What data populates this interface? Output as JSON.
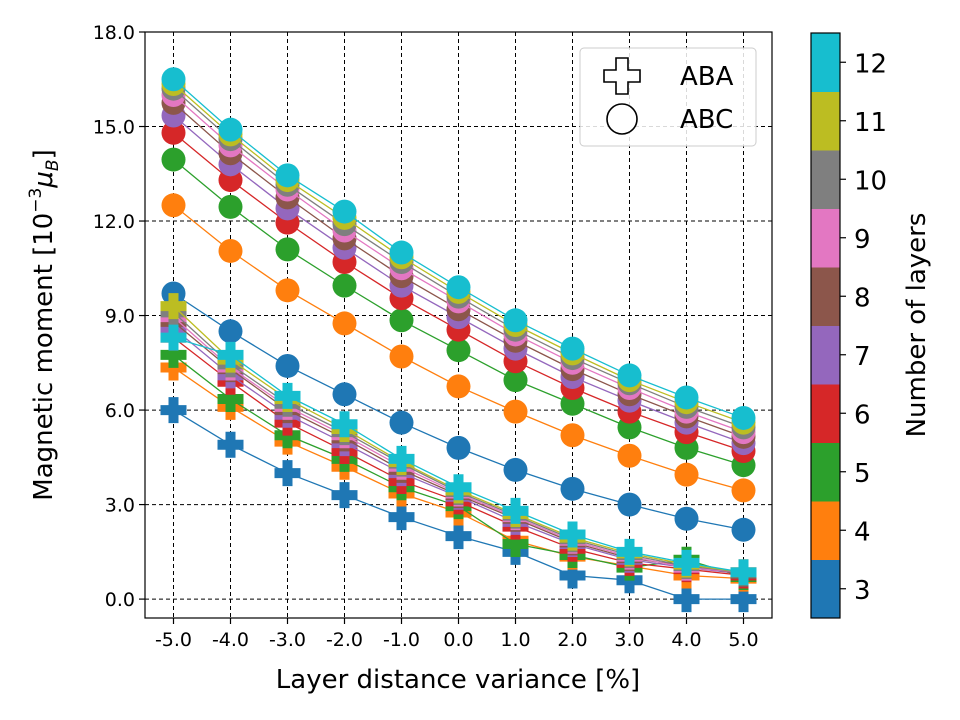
{
  "chart_data": {
    "type": "line",
    "xlabel": "Layer distance variance [%]",
    "ylabel_main": "Magnetic moment [10",
    "ylabel_exp": "−3",
    "ylabel_mu": "μ",
    "ylabel_sub": "B",
    "ylabel_close": "]",
    "x": [
      -5.0,
      -4.0,
      -3.0,
      -2.0,
      -1.0,
      0.0,
      1.0,
      2.0,
      3.0,
      4.0,
      5.0
    ],
    "xtick_labels": [
      "-5.0",
      "-4.0",
      "-3.0",
      "-2.0",
      "-1.0",
      "0.0",
      "1.0",
      "2.0",
      "3.0",
      "4.0",
      "5.0"
    ],
    "xlim": [
      -5.5,
      5.5
    ],
    "ylim": [
      -0.6,
      18.0
    ],
    "yticks": [
      0,
      3,
      6,
      9,
      12,
      15,
      18
    ],
    "ytick_labels": [
      "0.0",
      "3.0",
      "6.0",
      "9.0",
      "12.0",
      "15.0",
      "18.0"
    ],
    "grid": true,
    "legend": {
      "position": "top-right",
      "entries": [
        {
          "label": "ABA",
          "marker": "plus"
        },
        {
          "label": "ABC",
          "marker": "circle"
        }
      ]
    },
    "colorbar": {
      "label": "Number of layers",
      "ticks": [
        "3",
        "4",
        "5",
        "6",
        "7",
        "8",
        "9",
        "10",
        "11",
        "12"
      ],
      "colors": [
        "#1f77b4",
        "#ff7f0e",
        "#2ca02c",
        "#d62728",
        "#9467bd",
        "#8c564b",
        "#e377c2",
        "#7f7f7f",
        "#bcbd22",
        "#17becf"
      ]
    },
    "series_abc": [
      {
        "name": "3",
        "values": [
          9.7,
          8.5,
          7.4,
          6.5,
          5.6,
          4.8,
          4.1,
          3.5,
          3.0,
          2.55,
          2.2
        ]
      },
      {
        "name": "4",
        "values": [
          12.5,
          11.05,
          9.8,
          8.75,
          7.7,
          6.75,
          5.95,
          5.2,
          4.55,
          3.95,
          3.45
        ]
      },
      {
        "name": "5",
        "values": [
          13.95,
          12.45,
          11.1,
          9.95,
          8.85,
          7.9,
          6.95,
          6.2,
          5.45,
          4.8,
          4.25
        ]
      },
      {
        "name": "6",
        "values": [
          14.8,
          13.3,
          11.95,
          10.7,
          9.55,
          8.55,
          7.55,
          6.7,
          5.95,
          5.3,
          4.7
        ]
      },
      {
        "name": "7",
        "values": [
          15.35,
          13.8,
          12.4,
          11.15,
          9.95,
          8.95,
          7.95,
          7.05,
          6.3,
          5.6,
          4.95
        ]
      },
      {
        "name": "8",
        "values": [
          15.75,
          14.15,
          12.75,
          11.45,
          10.25,
          9.2,
          8.2,
          7.3,
          6.5,
          5.8,
          5.15
        ]
      },
      {
        "name": "9",
        "values": [
          16.0,
          14.4,
          13.0,
          11.7,
          10.5,
          9.45,
          8.4,
          7.5,
          6.7,
          5.95,
          5.3
        ]
      },
      {
        "name": "10",
        "values": [
          16.2,
          14.6,
          13.15,
          11.9,
          10.7,
          9.6,
          8.55,
          7.65,
          6.85,
          6.1,
          5.45
        ]
      },
      {
        "name": "11",
        "values": [
          16.35,
          14.75,
          13.3,
          12.1,
          10.85,
          9.75,
          8.7,
          7.8,
          6.95,
          6.25,
          5.6
        ]
      },
      {
        "name": "12",
        "values": [
          16.5,
          14.9,
          13.45,
          12.3,
          11.0,
          9.9,
          8.85,
          7.95,
          7.1,
          6.4,
          5.75
        ]
      }
    ],
    "series_aba": [
      {
        "name": "3",
        "values": [
          6.0,
          4.9,
          4.0,
          3.3,
          2.6,
          2.0,
          1.5,
          0.75,
          0.6,
          0.0,
          0.0
        ]
      },
      {
        "name": "4",
        "values": [
          7.35,
          6.1,
          5.0,
          4.2,
          3.35,
          2.75,
          1.85,
          1.35,
          1.05,
          0.75,
          0.65
        ]
      },
      {
        "name": "5",
        "values": [
          7.75,
          6.35,
          5.2,
          4.45,
          3.55,
          2.95,
          1.75,
          1.4,
          1.0,
          1.25,
          0.7
        ]
      },
      {
        "name": "6",
        "values": [
          8.3,
          6.9,
          5.6,
          4.7,
          3.75,
          3.1,
          2.3,
          1.6,
          1.15,
          0.95,
          0.75
        ]
      },
      {
        "name": "7",
        "values": [
          8.6,
          7.1,
          5.85,
          4.95,
          4.0,
          3.25,
          2.45,
          1.75,
          1.25,
          1.0,
          0.8
        ]
      },
      {
        "name": "8",
        "values": [
          8.8,
          7.3,
          6.0,
          5.1,
          4.1,
          3.3,
          2.55,
          1.8,
          1.3,
          1.05,
          0.8
        ]
      },
      {
        "name": "9",
        "values": [
          8.95,
          7.35,
          6.1,
          5.2,
          4.2,
          3.35,
          2.6,
          1.85,
          1.35,
          1.0,
          0.85
        ]
      },
      {
        "name": "10",
        "values": [
          9.1,
          7.45,
          6.2,
          5.3,
          4.3,
          3.4,
          2.65,
          1.9,
          1.4,
          1.05,
          0.85
        ]
      },
      {
        "name": "11",
        "values": [
          9.3,
          7.6,
          6.35,
          5.4,
          4.35,
          3.45,
          2.7,
          1.95,
          1.45,
          1.1,
          0.85
        ]
      },
      {
        "name": "12",
        "values": [
          8.3,
          7.75,
          6.45,
          5.55,
          4.45,
          3.55,
          2.8,
          2.05,
          1.5,
          1.15,
          0.85
        ]
      }
    ]
  }
}
